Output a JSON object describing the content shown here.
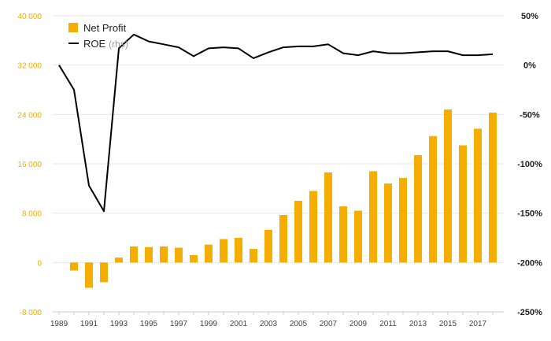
{
  "chart_data": {
    "type": "bar+line",
    "colors": {
      "bar": "#f5ad00",
      "line": "#000000",
      "left_ticks": "#f0ad00",
      "grid": "#e6e6e6"
    },
    "x": [
      1989,
      1990,
      1991,
      1992,
      1993,
      1994,
      1995,
      1996,
      1997,
      1998,
      1999,
      2000,
      2001,
      2002,
      2003,
      2004,
      2005,
      2006,
      2007,
      2008,
      2009,
      2010,
      2011,
      2012,
      2013,
      2014,
      2015,
      2016,
      2017,
      2018
    ],
    "x_tick_labels": [
      "1989",
      "1991",
      "1993",
      "1995",
      "1997",
      "1999",
      "2001",
      "2003",
      "2005",
      "2007",
      "2009",
      "2011",
      "2013",
      "2015",
      "2017"
    ],
    "y_left": {
      "range": [
        -8000,
        40000
      ],
      "tick_labels": [
        "40 000",
        "32 000",
        "24 000",
        "16 000",
        "8 000",
        "0",
        "-8 000"
      ],
      "tick_values": [
        40000,
        32000,
        24000,
        16000,
        8000,
        0,
        -8000
      ]
    },
    "y_right": {
      "range": [
        -250,
        50
      ],
      "tick_labels": [
        "50%",
        "0%",
        "-50%",
        "-100%",
        "-150%",
        "-200%",
        "-250%"
      ],
      "tick_values": [
        50,
        0,
        -50,
        -100,
        -150,
        -200,
        -250
      ]
    },
    "grid": "horizontal",
    "legend_position": "top-left",
    "series": [
      {
        "name": "Net Profit",
        "type": "bar",
        "axis": "left",
        "values": [
          null,
          -1300,
          -4100,
          -3200,
          800,
          2600,
          2500,
          2600,
          2400,
          1200,
          2900,
          3800,
          4000,
          2200,
          5300,
          7700,
          10000,
          11600,
          14600,
          9100,
          8400,
          14800,
          12800,
          13700,
          17400,
          20500,
          24800,
          19000,
          21700,
          24300
        ]
      },
      {
        "name": "ROE",
        "name_suffix": "(rhs)",
        "type": "line",
        "axis": "right",
        "values": [
          0,
          -25,
          -122,
          -148,
          17,
          31,
          24,
          21,
          18,
          9,
          17,
          18,
          17,
          7,
          13,
          18,
          19,
          19,
          21,
          12,
          10,
          14,
          12,
          12,
          13,
          14,
          14,
          10,
          10,
          11
        ]
      }
    ]
  }
}
